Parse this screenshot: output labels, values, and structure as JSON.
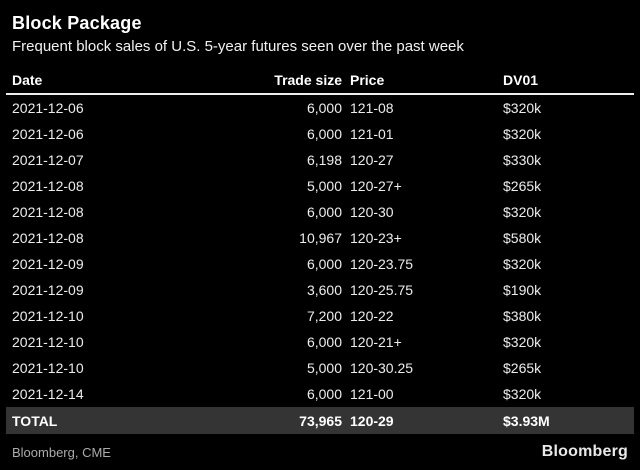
{
  "colors": {
    "background": "#000000",
    "text": "#f0f0f0",
    "header_rule": "#ececec",
    "total_row_bg": "#343434",
    "source_text": "#ababab"
  },
  "chart_data": {
    "type": "table",
    "title": "Block Package",
    "subtitle": "Frequent block sales of U.S. 5-year futures seen over the past week",
    "columns": [
      "Date",
      "Trade size",
      "Price",
      "DV01"
    ],
    "rows": [
      [
        "2021-12-06",
        "6,000",
        "121-08",
        "$320k"
      ],
      [
        "2021-12-06",
        "6,000",
        "121-01",
        "$320k"
      ],
      [
        "2021-12-07",
        "6,198",
        "120-27",
        "$330k"
      ],
      [
        "2021-12-08",
        "5,000",
        "120-27+",
        "$265k"
      ],
      [
        "2021-12-08",
        "6,000",
        "120-30",
        "$320k"
      ],
      [
        "2021-12-08",
        "10,967",
        "120-23+",
        "$580k"
      ],
      [
        "2021-12-09",
        "6,000",
        "120-23.75",
        "$320k"
      ],
      [
        "2021-12-09",
        "3,600",
        "120-25.75",
        "$190k"
      ],
      [
        "2021-12-10",
        "7,200",
        "120-22",
        "$380k"
      ],
      [
        "2021-12-10",
        "6,000",
        "120-21+",
        "$320k"
      ],
      [
        "2021-12-10",
        "5,000",
        "120-30.25",
        "$265k"
      ],
      [
        "2021-12-14",
        "6,000",
        "121-00",
        "$320k"
      ]
    ],
    "total_row": [
      "TOTAL",
      "73,965",
      "120-29",
      "$3.93M"
    ],
    "source": "Bloomberg, CME",
    "brand": "Bloomberg",
    "layout": {
      "grid": "off",
      "legend": "none",
      "row_count": 12
    }
  }
}
